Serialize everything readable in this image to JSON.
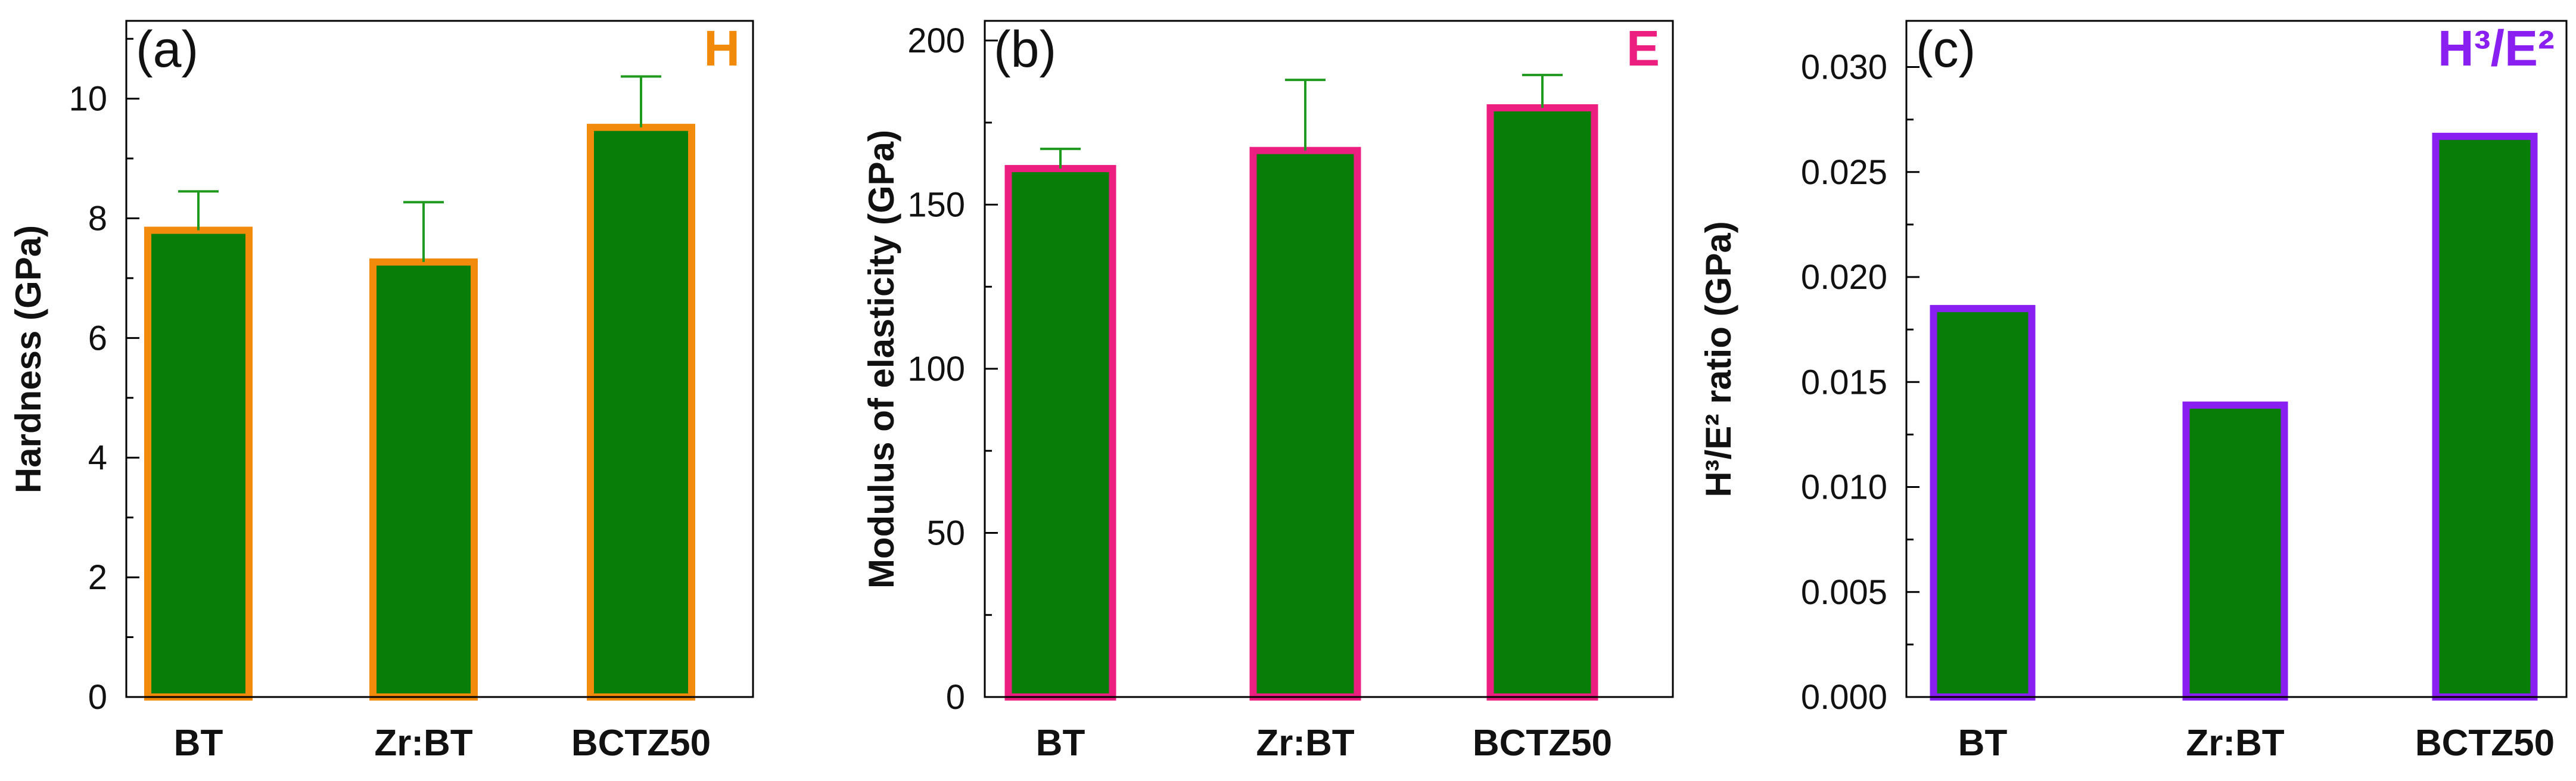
{
  "chart_data": [
    {
      "type": "bar",
      "panel_label": "(a)",
      "corner_label": "H",
      "corner_color": "#f28a0c",
      "bar_fill": "#087d08",
      "bar_edge": "#f28a0c",
      "error_color": "#1f9a1f",
      "categories": [
        "BT",
        "Zr:BT",
        "BCTZ50"
      ],
      "values": [
        7.8,
        7.27,
        9.52
      ],
      "errors": [
        0.65,
        1.0,
        0.85
      ],
      "ylabel": "Hardness (GPa)",
      "ylim": [
        0,
        11.3
      ],
      "yticks": [
        0,
        2,
        4,
        6,
        8,
        10
      ],
      "ytick_labels": [
        "0",
        "2",
        "4",
        "6",
        "8",
        "10"
      ]
    },
    {
      "type": "bar",
      "panel_label": "(b)",
      "corner_label": "E",
      "corner_color": "#ec1e7f",
      "bar_fill": "#087d08",
      "bar_edge": "#ec1e7f",
      "error_color": "#1f9a1f",
      "categories": [
        "BT",
        "Zr:BT",
        "BCTZ50"
      ],
      "values": [
        161,
        166.5,
        179.5
      ],
      "errors": [
        6,
        21.5,
        10
      ],
      "ylabel": "Modulus of elasticity (GPa)",
      "ylim": [
        0,
        206
      ],
      "yticks": [
        0,
        50,
        100,
        150,
        200
      ],
      "ytick_labels": [
        "0",
        "50",
        "100",
        "150",
        "200"
      ]
    },
    {
      "type": "bar",
      "panel_label": "(c)",
      "corner_label": "H³/E²",
      "corner_color": "#8a1ff2",
      "bar_fill": "#087d08",
      "bar_edge": "#8a1ff2",
      "error_color": "#1f9a1f",
      "categories": [
        "BT",
        "Zr:BT",
        "BCTZ50"
      ],
      "values": [
        0.0185,
        0.0139,
        0.0267
      ],
      "errors": [
        0,
        0,
        0
      ],
      "ylabel": "H³/E² ratio (GPa)",
      "ylim": [
        0,
        0.0322
      ],
      "yticks": [
        0,
        0.005,
        0.01,
        0.015,
        0.02,
        0.025,
        0.03
      ],
      "ytick_labels": [
        "0.000",
        "0.005",
        "0.010",
        "0.015",
        "0.020",
        "0.025",
        "0.030"
      ]
    }
  ]
}
